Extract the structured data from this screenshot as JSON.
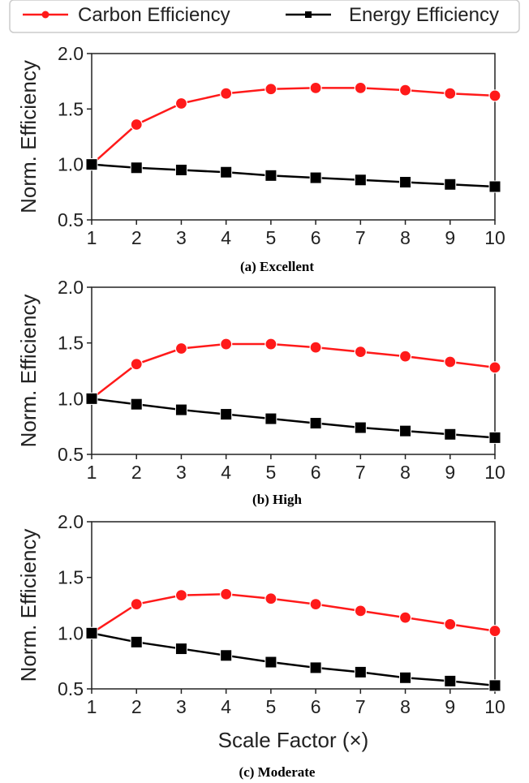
{
  "legend": {
    "carbon_label": "Carbon Efficiency",
    "energy_label": "Energy Efficiency",
    "carbon_color": "#ff1a1a",
    "energy_color": "#000000",
    "placement": "top"
  },
  "chart_data": [
    {
      "type": "line",
      "caption": "(a) Excellent",
      "xlabel": "",
      "ylabel": "Norm. Efficiency",
      "xlim": [
        1,
        10
      ],
      "ylim": [
        0.5,
        2.0
      ],
      "x": [
        1,
        2,
        3,
        4,
        5,
        6,
        7,
        8,
        9,
        10
      ],
      "xticks": [
        "1",
        "2",
        "3",
        "4",
        "5",
        "6",
        "7",
        "8",
        "9",
        "10"
      ],
      "yticks": [
        "0.5",
        "1.0",
        "1.5",
        "2.0"
      ],
      "series": [
        {
          "name": "Carbon Efficiency",
          "values": [
            1.0,
            1.36,
            1.55,
            1.64,
            1.68,
            1.69,
            1.69,
            1.67,
            1.64,
            1.62
          ]
        },
        {
          "name": "Energy Efficiency",
          "values": [
            1.0,
            0.97,
            0.95,
            0.93,
            0.9,
            0.88,
            0.86,
            0.84,
            0.82,
            0.8
          ]
        }
      ]
    },
    {
      "type": "line",
      "caption": "(b) High",
      "xlabel": "",
      "ylabel": "Norm. Efficiency",
      "xlim": [
        1,
        10
      ],
      "ylim": [
        0.5,
        2.0
      ],
      "x": [
        1,
        2,
        3,
        4,
        5,
        6,
        7,
        8,
        9,
        10
      ],
      "xticks": [
        "1",
        "2",
        "3",
        "4",
        "5",
        "6",
        "7",
        "8",
        "9",
        "10"
      ],
      "yticks": [
        "0.5",
        "1.0",
        "1.5",
        "2.0"
      ],
      "series": [
        {
          "name": "Carbon Efficiency",
          "values": [
            1.0,
            1.31,
            1.45,
            1.49,
            1.49,
            1.46,
            1.42,
            1.38,
            1.33,
            1.28
          ]
        },
        {
          "name": "Energy Efficiency",
          "values": [
            1.0,
            0.95,
            0.9,
            0.86,
            0.82,
            0.78,
            0.74,
            0.71,
            0.68,
            0.65
          ]
        }
      ]
    },
    {
      "type": "line",
      "caption": "(c) Moderate",
      "xlabel": "Scale Factor (×)",
      "ylabel": "Norm. Efficiency",
      "xlim": [
        1,
        10
      ],
      "ylim": [
        0.5,
        2.0
      ],
      "x": [
        1,
        2,
        3,
        4,
        5,
        6,
        7,
        8,
        9,
        10
      ],
      "xticks": [
        "1",
        "2",
        "3",
        "4",
        "5",
        "6",
        "7",
        "8",
        "9",
        "10"
      ],
      "yticks": [
        "0.5",
        "1.0",
        "1.5",
        "2.0"
      ],
      "series": [
        {
          "name": "Carbon Efficiency",
          "values": [
            1.0,
            1.26,
            1.34,
            1.35,
            1.31,
            1.26,
            1.2,
            1.14,
            1.08,
            1.02
          ]
        },
        {
          "name": "Energy Efficiency",
          "values": [
            1.0,
            0.92,
            0.86,
            0.8,
            0.74,
            0.69,
            0.65,
            0.6,
            0.57,
            0.53
          ]
        }
      ]
    }
  ]
}
